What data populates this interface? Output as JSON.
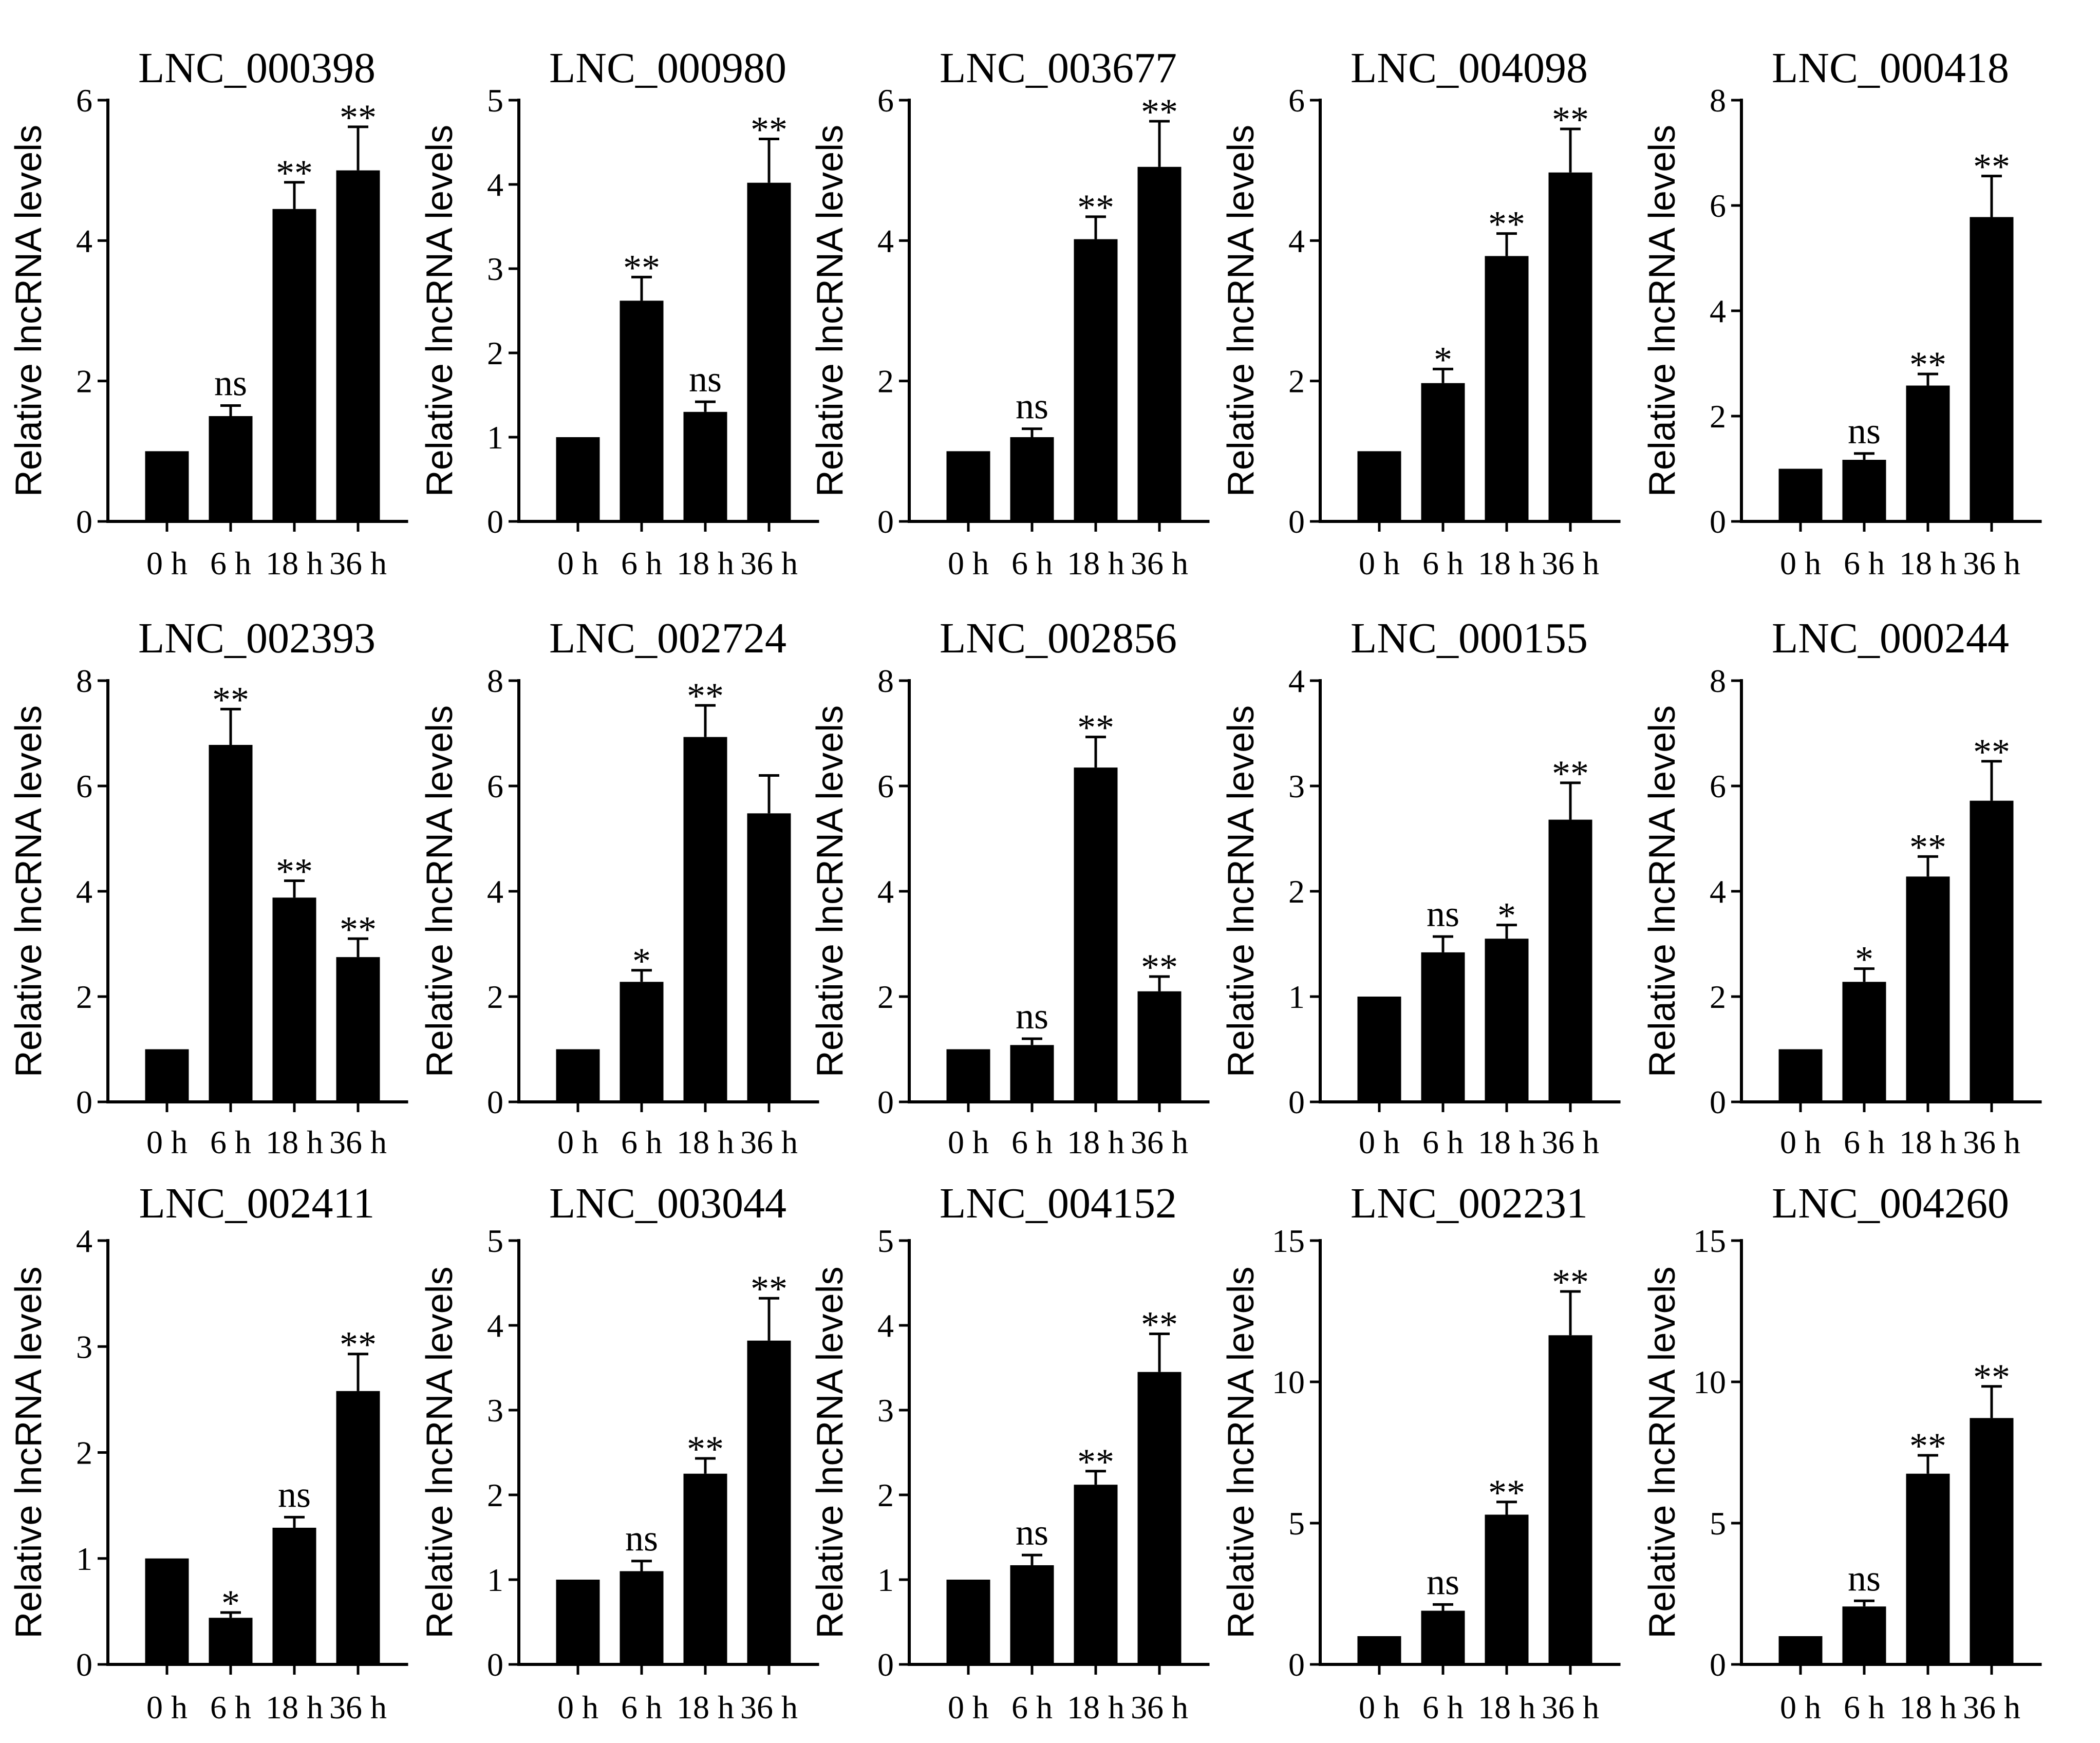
{
  "figure": {
    "categories": [
      "0 h",
      "6 h",
      "18 h",
      "36 h"
    ],
    "ylabel": "Relative lncRNA levels"
  },
  "chart_data": [
    {
      "type": "bar",
      "title": "LNC_000398",
      "categories": [
        "0 h",
        "6 h",
        "18 h",
        "36 h"
      ],
      "ylabel": "Relative lncRNA levels",
      "ylim": [
        0,
        6
      ],
      "yticks": [
        0,
        2,
        4,
        6
      ],
      "values": [
        1.0,
        1.5,
        4.45,
        5.0
      ],
      "errors": [
        0,
        0.15,
        0.38,
        0.62
      ],
      "significance": [
        "",
        "ns",
        "**",
        "**"
      ]
    },
    {
      "type": "bar",
      "title": "LNC_000980",
      "categories": [
        "0 h",
        "6 h",
        "18 h",
        "36 h"
      ],
      "ylabel": "Relative lncRNA levels",
      "ylim": [
        0,
        5
      ],
      "yticks": [
        0,
        1,
        2,
        3,
        4,
        5
      ],
      "values": [
        1.0,
        2.62,
        1.3,
        4.02
      ],
      "errors": [
        0,
        0.28,
        0.12,
        0.52
      ],
      "significance": [
        "",
        "**",
        "ns",
        "**"
      ]
    },
    {
      "type": "bar",
      "title": "LNC_003677",
      "categories": [
        "0 h",
        "6 h",
        "18 h",
        "36 h"
      ],
      "ylabel": "Relative lncRNA levels",
      "ylim": [
        0,
        6
      ],
      "yticks": [
        0,
        2,
        4,
        6
      ],
      "values": [
        1.0,
        1.2,
        4.02,
        5.05
      ],
      "errors": [
        0,
        0.12,
        0.32,
        0.65
      ],
      "significance": [
        "",
        "ns",
        "**",
        "**"
      ]
    },
    {
      "type": "bar",
      "title": "LNC_004098",
      "categories": [
        "0 h",
        "6 h",
        "18 h",
        "36 h"
      ],
      "ylabel": "Relative lncRNA levels",
      "ylim": [
        0,
        6
      ],
      "yticks": [
        0,
        2,
        4,
        6
      ],
      "values": [
        1.0,
        1.97,
        3.78,
        4.97
      ],
      "errors": [
        0,
        0.2,
        0.32,
        0.62
      ],
      "significance": [
        "",
        "*",
        "**",
        "**"
      ]
    },
    {
      "type": "bar",
      "title": "LNC_000418",
      "categories": [
        "0 h",
        "6 h",
        "18 h",
        "36 h"
      ],
      "ylabel": "Relative lncRNA levels",
      "ylim": [
        0,
        8
      ],
      "yticks": [
        0,
        2,
        4,
        6,
        8
      ],
      "values": [
        1.0,
        1.17,
        2.58,
        5.78
      ],
      "errors": [
        0,
        0.12,
        0.22,
        0.78
      ],
      "significance": [
        "",
        "ns",
        "**",
        "**"
      ]
    },
    {
      "type": "bar",
      "title": "LNC_002393",
      "categories": [
        "0 h",
        "6 h",
        "18 h",
        "36 h"
      ],
      "ylabel": "Relative lncRNA levels",
      "ylim": [
        0,
        8
      ],
      "yticks": [
        0,
        2,
        4,
        6,
        8
      ],
      "values": [
        1.0,
        6.78,
        3.88,
        2.75
      ],
      "errors": [
        0,
        0.68,
        0.32,
        0.35
      ],
      "significance": [
        "",
        "**",
        "**",
        "**"
      ]
    },
    {
      "type": "bar",
      "title": "LNC_002724",
      "categories": [
        "0 h",
        "6 h",
        "18 h",
        "36 h"
      ],
      "ylabel": "Relative lncRNA levels",
      "ylim": [
        0,
        8
      ],
      "yticks": [
        0,
        2,
        4,
        6,
        8
      ],
      "values": [
        1.0,
        2.28,
        6.93,
        5.48
      ],
      "errors": [
        0,
        0.22,
        0.6,
        0.72
      ],
      "significance": [
        "",
        "*",
        "**",
        ""
      ]
    },
    {
      "type": "bar",
      "title": "LNC_002856",
      "categories": [
        "0 h",
        "6 h",
        "18 h",
        "36 h"
      ],
      "ylabel": "Relative lncRNA levels",
      "ylim": [
        0,
        8
      ],
      "yticks": [
        0,
        2,
        4,
        6,
        8
      ],
      "values": [
        1.0,
        1.08,
        6.35,
        2.1
      ],
      "errors": [
        0,
        0.12,
        0.58,
        0.28
      ],
      "significance": [
        "",
        "ns",
        "**",
        "**"
      ]
    },
    {
      "type": "bar",
      "title": "LNC_000155",
      "categories": [
        "0 h",
        "6 h",
        "18 h",
        "36 h"
      ],
      "ylabel": "Relative lncRNA levels",
      "ylim": [
        0,
        4
      ],
      "yticks": [
        0,
        1,
        2,
        3,
        4
      ],
      "values": [
        1.0,
        1.42,
        1.55,
        2.68
      ],
      "errors": [
        0,
        0.15,
        0.13,
        0.35
      ],
      "significance": [
        "",
        "ns",
        "*",
        "**"
      ]
    },
    {
      "type": "bar",
      "title": "LNC_000244",
      "categories": [
        "0 h",
        "6 h",
        "18 h",
        "36 h"
      ],
      "ylabel": "Relative lncRNA levels",
      "ylim": [
        0,
        8
      ],
      "yticks": [
        0,
        2,
        4,
        6,
        8
      ],
      "values": [
        1.0,
        2.28,
        4.28,
        5.72
      ],
      "errors": [
        0,
        0.25,
        0.38,
        0.75
      ],
      "significance": [
        "",
        "*",
        "**",
        "**"
      ]
    },
    {
      "type": "bar",
      "title": "LNC_002411",
      "categories": [
        "0 h",
        "6 h",
        "18 h",
        "36 h"
      ],
      "ylabel": "Relative lncRNA levels",
      "ylim": [
        0,
        4
      ],
      "yticks": [
        0,
        1,
        2,
        3,
        4
      ],
      "values": [
        1.0,
        0.44,
        1.29,
        2.58
      ],
      "errors": [
        0,
        0.05,
        0.1,
        0.35
      ],
      "significance": [
        "",
        "*",
        "ns",
        "**"
      ]
    },
    {
      "type": "bar",
      "title": "LNC_003044",
      "categories": [
        "0 h",
        "6 h",
        "18 h",
        "36 h"
      ],
      "ylabel": "Relative lncRNA levels",
      "ylim": [
        0,
        5
      ],
      "yticks": [
        0,
        1,
        2,
        3,
        4,
        5
      ],
      "values": [
        1.0,
        1.1,
        2.25,
        3.82
      ],
      "errors": [
        0,
        0.12,
        0.18,
        0.5
      ],
      "significance": [
        "",
        "ns",
        "**",
        "**"
      ]
    },
    {
      "type": "bar",
      "title": "LNC_004152",
      "categories": [
        "0 h",
        "6 h",
        "18 h",
        "36 h"
      ],
      "ylabel": "Relative lncRNA levels",
      "ylim": [
        0,
        5
      ],
      "yticks": [
        0,
        1,
        2,
        3,
        4,
        5
      ],
      "values": [
        1.0,
        1.17,
        2.12,
        3.45
      ],
      "errors": [
        0,
        0.12,
        0.16,
        0.45
      ],
      "significance": [
        "",
        "ns",
        "**",
        "**"
      ]
    },
    {
      "type": "bar",
      "title": "LNC_002231",
      "categories": [
        "0 h",
        "6 h",
        "18 h",
        "36 h"
      ],
      "ylabel": "Relative lncRNA levels",
      "ylim": [
        0,
        15
      ],
      "yticks": [
        0,
        5,
        10,
        15
      ],
      "values": [
        1.0,
        1.9,
        5.3,
        11.65
      ],
      "errors": [
        0,
        0.22,
        0.45,
        1.55
      ],
      "significance": [
        "",
        "ns",
        "**",
        "**"
      ]
    },
    {
      "type": "bar",
      "title": "LNC_004260",
      "categories": [
        "0 h",
        "6 h",
        "18 h",
        "36 h"
      ],
      "ylabel": "Relative lncRNA levels",
      "ylim": [
        0,
        15
      ],
      "yticks": [
        0,
        5,
        10,
        15
      ],
      "values": [
        1.0,
        2.05,
        6.75,
        8.72
      ],
      "errors": [
        0,
        0.2,
        0.65,
        1.12
      ],
      "significance": [
        "",
        "ns",
        "**",
        "**"
      ]
    }
  ]
}
